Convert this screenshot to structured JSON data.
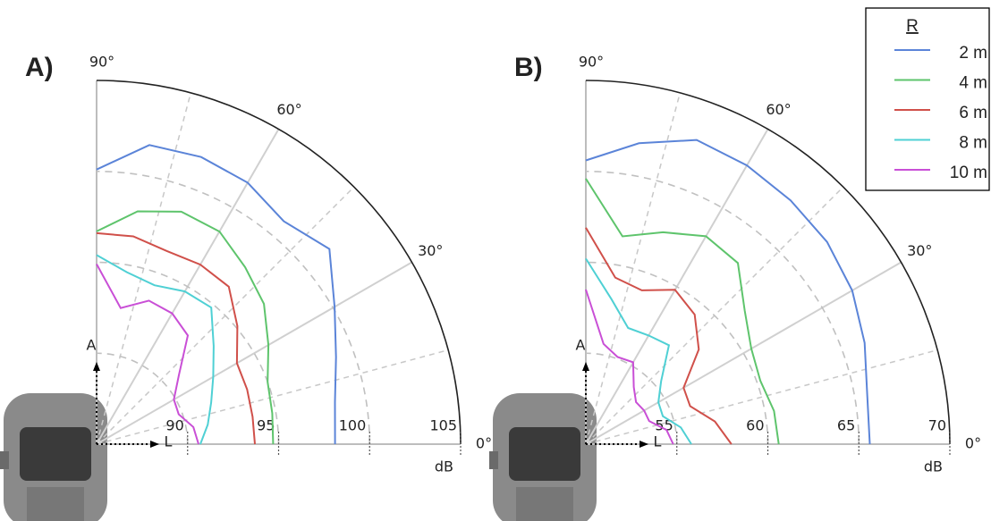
{
  "chart_data": [
    {
      "type": "polar",
      "panel_label": "A)",
      "r_unit_label": "dB",
      "y_axis_label": "A",
      "x_axis_label": "L",
      "legend_title": "R",
      "rlim": [
        85,
        105
      ],
      "rticks": [
        90,
        95,
        100,
        105
      ],
      "thetaticks": [
        {
          "value": 0,
          "label": "0°"
        },
        {
          "value": 30,
          "label": "30°"
        },
        {
          "value": 60,
          "label": "60°"
        },
        {
          "value": 90,
          "label": "90°"
        }
      ],
      "minor_thetaticks": [
        15,
        45,
        75
      ],
      "x": [
        0,
        10,
        20,
        30,
        40,
        50,
        60,
        70,
        80,
        90
      ],
      "series": [
        {
          "name": "2 m",
          "color": "#5b84d8",
          "values": [
            98.1,
            98.3,
            99.0,
            100.1,
            101.7,
            101.0,
            101.6,
            101.8,
            101.7,
            100.1
          ]
        },
        {
          "name": "4 m",
          "color": "#5ec46c",
          "values": [
            94.7,
            94.8,
            95.0,
            95.9,
            97.0,
            97.7,
            98.5,
            98.6,
            98.0,
            96.7
          ]
        },
        {
          "name": "6 m",
          "color": "#d0504a",
          "values": [
            93.7,
            93.7,
            93.8,
            93.9,
            95.1,
            96.3,
            96.4,
            96.3,
            96.6,
            96.6
          ]
        },
        {
          "name": "8 m",
          "color": "#4fd0d4",
          "values": [
            90.7,
            91.2,
            91.7,
            92.4,
            93.4,
            94.8,
            94.7,
            94.3,
            94.6,
            95.4
          ]
        },
        {
          "name": "10 m",
          "color": "#c94fd6",
          "values": [
            90.6,
            90.4,
            89.8,
            89.9,
            90.9,
            92.8,
            93.3,
            93.4,
            92.6,
            94.9
          ]
        }
      ]
    },
    {
      "type": "polar",
      "panel_label": "B)",
      "r_unit_label": "dB",
      "y_axis_label": "A",
      "x_axis_label": "L",
      "rlim": [
        50,
        70
      ],
      "rticks": [
        55,
        60,
        65,
        70
      ],
      "thetaticks": [
        {
          "value": 0,
          "label": "0°"
        },
        {
          "value": 30,
          "label": "30°"
        },
        {
          "value": 60,
          "label": "60°"
        },
        {
          "value": 90,
          "label": "90°"
        }
      ],
      "minor_thetaticks": [
        15,
        45,
        75
      ],
      "x": [
        0,
        10,
        20,
        30,
        40,
        50,
        60,
        70,
        80,
        90
      ],
      "series": [
        {
          "color": "#5b84d8",
          "values": [
            65.6,
            65.7,
            66.3,
            66.9,
            67.3,
            67.5,
            67.7,
            67.8,
            66.8,
            65.6
          ]
        },
        {
          "color": "#5ec46c",
          "values": [
            60.6,
            60.5,
            60.2,
            60.5,
            61.4,
            63.0,
            63.2,
            62.4,
            61.6,
            64.6
          ]
        },
        {
          "color": "#d0504a",
          "values": [
            58.0,
            57.2,
            56.1,
            56.2,
            58.1,
            59.3,
            59.8,
            59.0,
            59.3,
            61.9
          ]
        },
        {
          "color": "#4fd0d4",
          "values": [
            55.8,
            55.3,
            54.5,
            54.6,
            55.4,
            57.1,
            56.9,
            56.8,
            58.1,
            60.2
          ]
        },
        {
          "color": "#c94fd6",
          "values": [
            54.8,
            54.5,
            53.7,
            53.7,
            53.6,
            54.1,
            55.2,
            55.1,
            55.6,
            58.5
          ]
        }
      ]
    }
  ]
}
